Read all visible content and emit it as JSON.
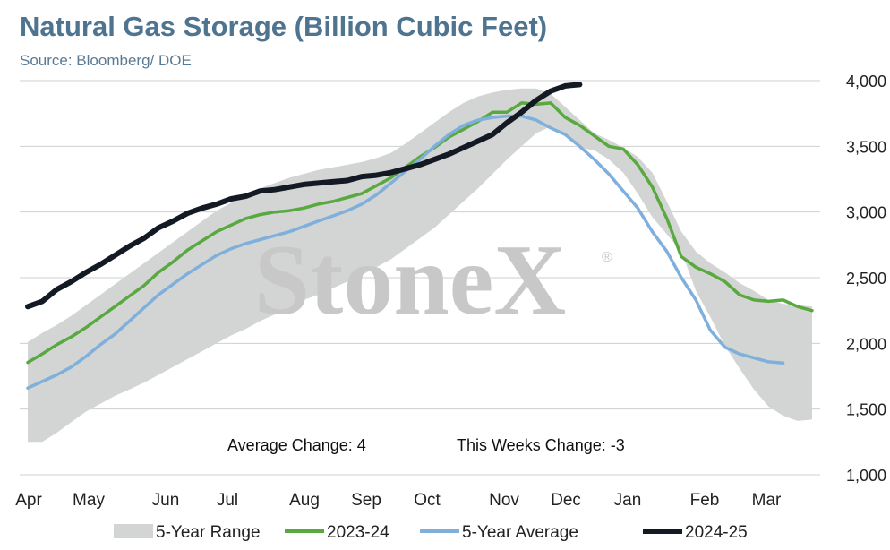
{
  "chart_data": {
    "type": "area",
    "title": "Natural Gas Storage (Billion Cubic Feet)",
    "subtitle": "Source: Bloomberg/ DOE",
    "watermark": "StoneX",
    "watermark_mark": "®",
    "xlabel": "",
    "ylabel": "",
    "x_ticks": [
      "Apr",
      "May",
      "Jun",
      "Jul",
      "Aug",
      "Sep",
      "Oct",
      "Nov",
      "Dec",
      "Jan",
      "Feb",
      "Mar"
    ],
    "ylim": [
      1000,
      4000
    ],
    "y_ticks": [
      1000,
      1500,
      2000,
      2500,
      3000,
      3500,
      4000
    ],
    "y_tick_labels": [
      "1,000",
      "1,500",
      "2,000",
      "2,500",
      "3,000",
      "3,500",
      "4,000"
    ],
    "y_axis_side": "right",
    "grid": true,
    "legend_position": "bottom",
    "annotations": [
      {
        "text": "Average Change: 4"
      },
      {
        "text": "This Weeks Change: -3"
      }
    ],
    "week_count": 52,
    "range": {
      "name": "5-Year Range",
      "color": "#d3d5d5",
      "lower": [
        1250,
        1250,
        1320,
        1400,
        1480,
        1540,
        1600,
        1650,
        1700,
        1760,
        1820,
        1880,
        1940,
        2000,
        2060,
        2110,
        2170,
        2220,
        2270,
        2330,
        2370,
        2420,
        2470,
        2520,
        2580,
        2640,
        2720,
        2800,
        2880,
        2980,
        3080,
        3180,
        3290,
        3400,
        3500,
        3600,
        3650,
        3580,
        3490,
        3470,
        3400,
        3300,
        3140,
        2960,
        2830,
        2700,
        2400,
        2200,
        1980,
        1810,
        1650,
        1520,
        1450,
        1410,
        1420
      ],
      "upper": [
        2010,
        2080,
        2140,
        2210,
        2290,
        2370,
        2450,
        2530,
        2610,
        2690,
        2770,
        2850,
        2930,
        3010,
        3070,
        3130,
        3180,
        3220,
        3260,
        3290,
        3320,
        3340,
        3360,
        3380,
        3410,
        3450,
        3520,
        3600,
        3680,
        3760,
        3830,
        3880,
        3910,
        3930,
        3940,
        3940,
        3900,
        3800,
        3700,
        3600,
        3550,
        3490,
        3420,
        3300,
        3080,
        2850,
        2700,
        2610,
        2540,
        2460,
        2400,
        2330,
        2300,
        2290,
        2280
      ]
    },
    "series": [
      {
        "name": "2023-24",
        "color": "#5aa940",
        "values": [
          1855,
          1920,
          1990,
          2050,
          2120,
          2200,
          2280,
          2360,
          2440,
          2540,
          2620,
          2710,
          2780,
          2850,
          2900,
          2950,
          2980,
          3000,
          3010,
          3030,
          3060,
          3080,
          3110,
          3140,
          3200,
          3260,
          3340,
          3420,
          3490,
          3570,
          3630,
          3690,
          3760,
          3760,
          3830,
          3820,
          3830,
          3720,
          3660,
          3580,
          3500,
          3480,
          3360,
          3190,
          2950,
          2660,
          2580,
          2530,
          2470,
          2370,
          2330,
          2320,
          2330,
          2280,
          2250
        ]
      },
      {
        "name": "5-Year Average",
        "color": "#7fb0dc",
        "values": [
          1660,
          1710,
          1760,
          1820,
          1900,
          1990,
          2070,
          2170,
          2270,
          2370,
          2450,
          2530,
          2600,
          2670,
          2720,
          2760,
          2790,
          2820,
          2850,
          2890,
          2930,
          2970,
          3010,
          3060,
          3130,
          3220,
          3310,
          3400,
          3500,
          3590,
          3660,
          3700,
          3720,
          3730,
          3730,
          3700,
          3640,
          3590,
          3500,
          3400,
          3290,
          3160,
          3030,
          2850,
          2700,
          2500,
          2330,
          2100,
          1970,
          1920,
          1890,
          1860,
          1850
        ]
      },
      {
        "name": "2024-25",
        "color": "#141a24",
        "values": [
          2280,
          2320,
          2410,
          2470,
          2540,
          2600,
          2670,
          2740,
          2800,
          2880,
          2930,
          2990,
          3030,
          3060,
          3100,
          3120,
          3160,
          3170,
          3190,
          3210,
          3220,
          3230,
          3240,
          3270,
          3280,
          3300,
          3330,
          3360,
          3400,
          3440,
          3490,
          3540,
          3590,
          3680,
          3760,
          3850,
          3920,
          3960,
          3970
        ]
      }
    ]
  }
}
